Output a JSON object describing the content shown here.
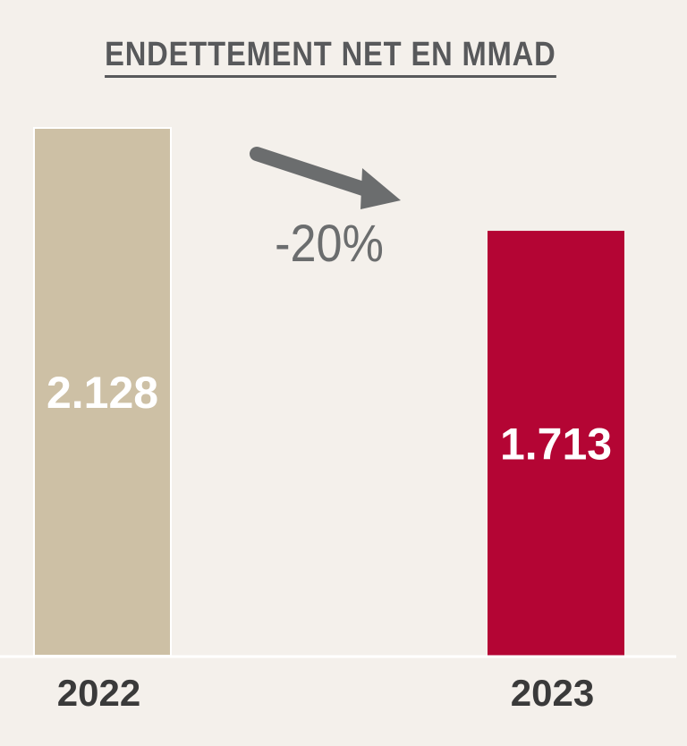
{
  "chart_data": {
    "type": "bar",
    "title": "ENDETTEMENT NET EN MMAD",
    "categories": [
      "2022",
      "2023"
    ],
    "values": [
      2128,
      1713
    ],
    "value_labels": [
      "2.128",
      "1.713"
    ],
    "colors": [
      "#cdc0a5",
      "#b40534"
    ],
    "ylim": [
      0,
      2128
    ],
    "xlabel": "",
    "ylabel": "",
    "grid": false,
    "annotation": {
      "text": "-20%",
      "color": "#6b6d6e",
      "icon": "down-right-arrow-icon"
    }
  }
}
